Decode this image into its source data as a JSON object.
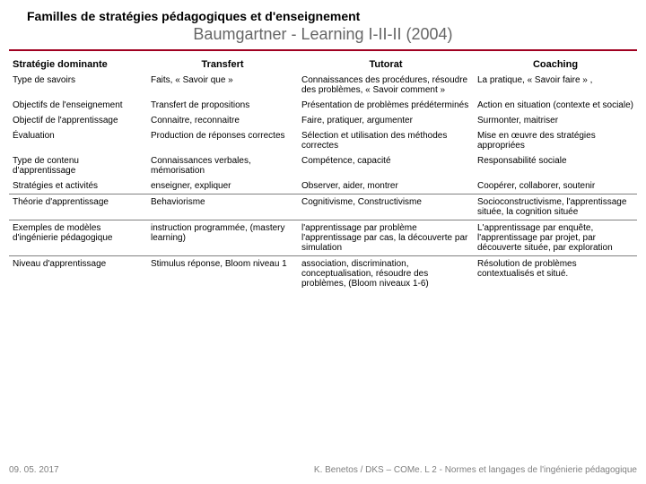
{
  "heading1": "Familles de stratégies pédagogiques et d'enseignement",
  "heading2": "Baumgartner - Learning I-II-II (2004)",
  "headers": {
    "c0": "Stratégie dominante",
    "c1": "Transfert",
    "c2": "Tutorat",
    "c3": "Coaching"
  },
  "rows": [
    {
      "c0": "Type de savoirs",
      "c1": "Faits, « Savoir que »",
      "c2": "Connaissances des procédures, résoudre des problèmes, « Savoir comment »",
      "c3": "La pratique, « Savoir faire » ,"
    },
    {
      "c0": "Objectifs de l'enseignement",
      "c1": "Transfert de propositions",
      "c2": "Présentation de problèmes prédéterminés",
      "c3": "Action en situation (contexte et sociale)"
    },
    {
      "c0": "Objectif de l'apprentissage",
      "c1": "Connaitre, reconnaitre",
      "c2": "Faire, pratiquer, argumenter",
      "c3": "Surmonter, maitriser"
    },
    {
      "c0": "Évaluation",
      "c1": "Production de réponses correctes",
      "c2": "Sélection et utilisation des méthodes correctes",
      "c3": "Mise en œuvre des stratégies appropriées"
    },
    {
      "c0": "Type de contenu d'apprentissage",
      "c1": "Connaissances verbales, mémorisation",
      "c2": "Compétence, capacité",
      "c3": "Responsabilité sociale"
    },
    {
      "c0": "Stratégies et activités",
      "c1": "enseigner, expliquer",
      "c2": "Observer, aider, montrer",
      "c3": "Coopérer, collaborer, soutenir"
    },
    {
      "c0": "Théorie d'apprentissage",
      "c1": "Behaviorisme",
      "c2": "Cognitivisme, Constructivisme",
      "c3": "Socioconstructivisme, l'apprentissage située, la cognition située"
    },
    {
      "c0": "Exemples de modèles d'ingénierie pédagogique",
      "c1": "instruction programmée, (mastery learning)",
      "c2": "l'apprentissage par problème l'apprentissage par cas, la découverte par simulation",
      "c3": "L'apprentissage par enquête, l'apprentissage par projet, par découverte située, par exploration"
    },
    {
      "c0": "Niveau d'apprentissage",
      "c1": "Stimulus réponse, Bloom niveau 1",
      "c2": "association, discrimination, conceptualisation, résoudre des problèmes, (Bloom niveaux 1-6)",
      "c3": "Résolution de problèmes contextualisés et situé."
    }
  ],
  "separators": [
    6,
    7,
    8
  ],
  "footer": {
    "left": "09. 05. 2017",
    "right": "K. Benetos / DKS – COMe. L 2 - Normes et langages de l'ingénierie pédagogique"
  },
  "colors": {
    "rule": "#a00020",
    "subtitle": "#666666",
    "footer": "#808080"
  }
}
